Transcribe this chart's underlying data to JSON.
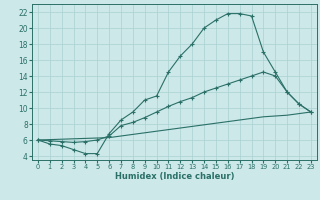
{
  "xlabel": "Humidex (Indice chaleur)",
  "xlim": [
    -0.5,
    23.5
  ],
  "ylim": [
    3.5,
    23
  ],
  "yticks": [
    4,
    6,
    8,
    10,
    12,
    14,
    16,
    18,
    20,
    22
  ],
  "xticks": [
    0,
    1,
    2,
    3,
    4,
    5,
    6,
    7,
    8,
    9,
    10,
    11,
    12,
    13,
    14,
    15,
    16,
    17,
    18,
    19,
    20,
    21,
    22,
    23
  ],
  "bg_color": "#cce8e8",
  "line_color": "#2a7068",
  "grid_color": "#aad0d0",
  "line1_x": [
    0,
    1,
    2,
    3,
    4,
    5,
    6,
    7,
    8,
    9,
    10,
    11,
    12,
    13,
    14,
    15,
    16,
    17,
    18,
    19,
    20,
    21,
    22,
    23
  ],
  "line1_y": [
    6.0,
    5.5,
    5.3,
    4.8,
    4.3,
    4.3,
    6.8,
    8.5,
    9.5,
    11.0,
    11.5,
    14.5,
    16.5,
    18.0,
    20.0,
    21.0,
    21.8,
    21.8,
    21.5,
    17.0,
    14.5,
    12.0,
    10.5,
    9.5
  ],
  "line2_x": [
    0,
    1,
    2,
    3,
    4,
    5,
    6,
    7,
    8,
    9,
    10,
    11,
    12,
    13,
    14,
    15,
    16,
    17,
    18,
    19,
    20,
    21,
    22,
    23
  ],
  "line2_y": [
    6.0,
    5.9,
    5.8,
    5.7,
    5.8,
    6.0,
    6.5,
    7.8,
    8.2,
    8.8,
    9.5,
    10.2,
    10.8,
    11.3,
    12.0,
    12.5,
    13.0,
    13.5,
    14.0,
    14.5,
    14.0,
    12.0,
    10.5,
    9.5
  ],
  "line3_x": [
    0,
    1,
    2,
    3,
    4,
    5,
    6,
    7,
    8,
    9,
    10,
    11,
    12,
    13,
    14,
    15,
    16,
    17,
    18,
    19,
    20,
    21,
    22,
    23
  ],
  "line3_y": [
    6.0,
    6.05,
    6.1,
    6.15,
    6.2,
    6.25,
    6.3,
    6.5,
    6.7,
    6.9,
    7.1,
    7.3,
    7.5,
    7.7,
    7.9,
    8.1,
    8.3,
    8.5,
    8.7,
    8.9,
    9.0,
    9.1,
    9.3,
    9.5
  ]
}
